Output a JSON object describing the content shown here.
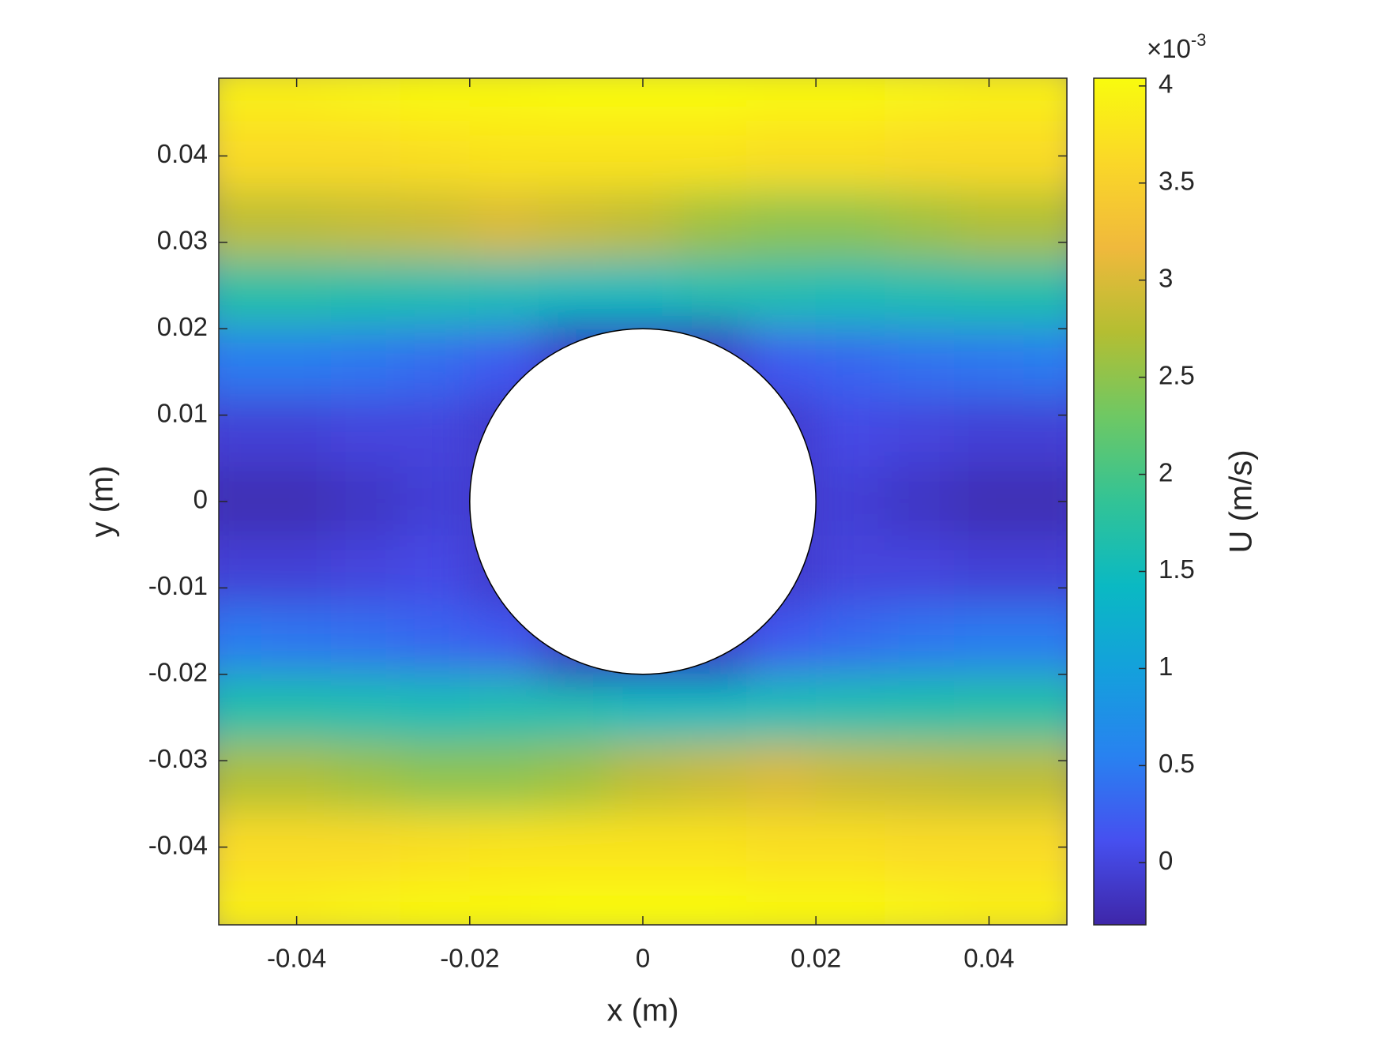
{
  "chart_data": {
    "type": "contourf",
    "xlabel": "x (m)",
    "ylabel": "y (m)",
    "colorbar_label": "U (m/s)",
    "colorbar_exponent_base": "×10",
    "colorbar_exponent_power": "-3",
    "xlim": [
      -0.049,
      0.049
    ],
    "ylim": [
      -0.049,
      0.049
    ],
    "xticks": [
      -0.04,
      -0.02,
      0,
      0.02,
      0.04
    ],
    "yticks": [
      -0.04,
      -0.03,
      -0.02,
      -0.01,
      0,
      0.01,
      0.02,
      0.03,
      0.04
    ],
    "clim": [
      -0.32,
      4.04
    ],
    "cticks": [
      0,
      0.5,
      1,
      1.5,
      2,
      2.5,
      3,
      3.5,
      4
    ],
    "colormap": "parula",
    "obstacle": {
      "cx": 0,
      "cy": 0,
      "r": 0.02
    },
    "field": {
      "x": [
        -0.048,
        -0.04,
        -0.032,
        -0.024,
        -0.016,
        -0.008,
        0,
        0.008,
        0.016,
        0.024,
        0.032,
        0.04,
        0.048
      ],
      "y": [
        0.048,
        0.04,
        0.032,
        0.024,
        0.016,
        0.008,
        0,
        -0.008,
        -0.016,
        -0.024,
        -0.032,
        -0.04,
        -0.048
      ],
      "values": [
        [
          3.9,
          3.9,
          3.95,
          4.0,
          4.0,
          4.05,
          4.05,
          4.05,
          4.0,
          4.0,
          3.95,
          3.9,
          3.9
        ],
        [
          3.65,
          3.65,
          3.65,
          3.7,
          3.75,
          3.75,
          3.75,
          3.75,
          3.7,
          3.7,
          3.65,
          3.65,
          3.65
        ],
        [
          2.8,
          2.8,
          2.85,
          2.9,
          3.0,
          2.9,
          2.8,
          2.6,
          2.5,
          2.5,
          2.6,
          2.7,
          2.7
        ],
        [
          1.7,
          1.7,
          1.65,
          1.6,
          1.55,
          1.5,
          1.5,
          1.6,
          1.6,
          1.55,
          1.6,
          1.65,
          1.65
        ],
        [
          0.5,
          0.5,
          0.45,
          0.35,
          0.2,
          null,
          null,
          null,
          0.2,
          0.3,
          0.4,
          0.45,
          0.5
        ],
        [
          -0.05,
          -0.05,
          0,
          0,
          null,
          null,
          null,
          null,
          null,
          0.05,
          0,
          -0.05,
          -0.05
        ],
        [
          -0.25,
          -0.25,
          -0.15,
          -0.05,
          null,
          null,
          null,
          null,
          null,
          -0.05,
          -0.15,
          -0.25,
          -0.25
        ],
        [
          -0.05,
          -0.05,
          0,
          0.05,
          null,
          null,
          null,
          null,
          null,
          0,
          0,
          -0.05,
          -0.05
        ],
        [
          0.5,
          0.45,
          0.4,
          0.3,
          0.2,
          null,
          null,
          null,
          0.2,
          0.35,
          0.45,
          0.5,
          0.5
        ],
        [
          1.65,
          1.65,
          1.6,
          1.55,
          1.6,
          1.6,
          1.5,
          1.5,
          1.55,
          1.6,
          1.65,
          1.7,
          1.7
        ],
        [
          2.7,
          2.7,
          2.6,
          2.5,
          2.5,
          2.6,
          2.8,
          2.9,
          3.0,
          2.9,
          2.85,
          2.8,
          2.8
        ],
        [
          3.65,
          3.65,
          3.65,
          3.7,
          3.75,
          3.75,
          3.75,
          3.75,
          3.7,
          3.7,
          3.65,
          3.65,
          3.65
        ],
        [
          3.9,
          3.9,
          3.95,
          4.0,
          4.0,
          4.05,
          4.05,
          4.05,
          4.0,
          4.0,
          3.95,
          3.9,
          3.9
        ]
      ]
    }
  }
}
